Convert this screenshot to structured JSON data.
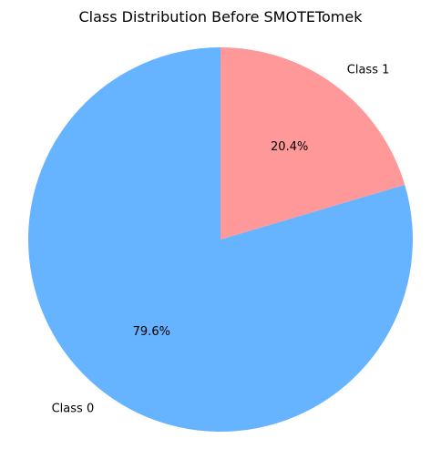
{
  "chart_data": {
    "type": "pie",
    "title": "Class Distribution Before SMOTETomek",
    "slices": [
      {
        "label": "Class 0",
        "value": 79.6,
        "pct_label": "79.6%",
        "color": "#66b3ff"
      },
      {
        "label": "Class 1",
        "value": 20.4,
        "pct_label": "20.4%",
        "color": "#ff9999"
      }
    ],
    "start_angle_deg": 90,
    "counterclockwise": true,
    "legend": "none"
  }
}
